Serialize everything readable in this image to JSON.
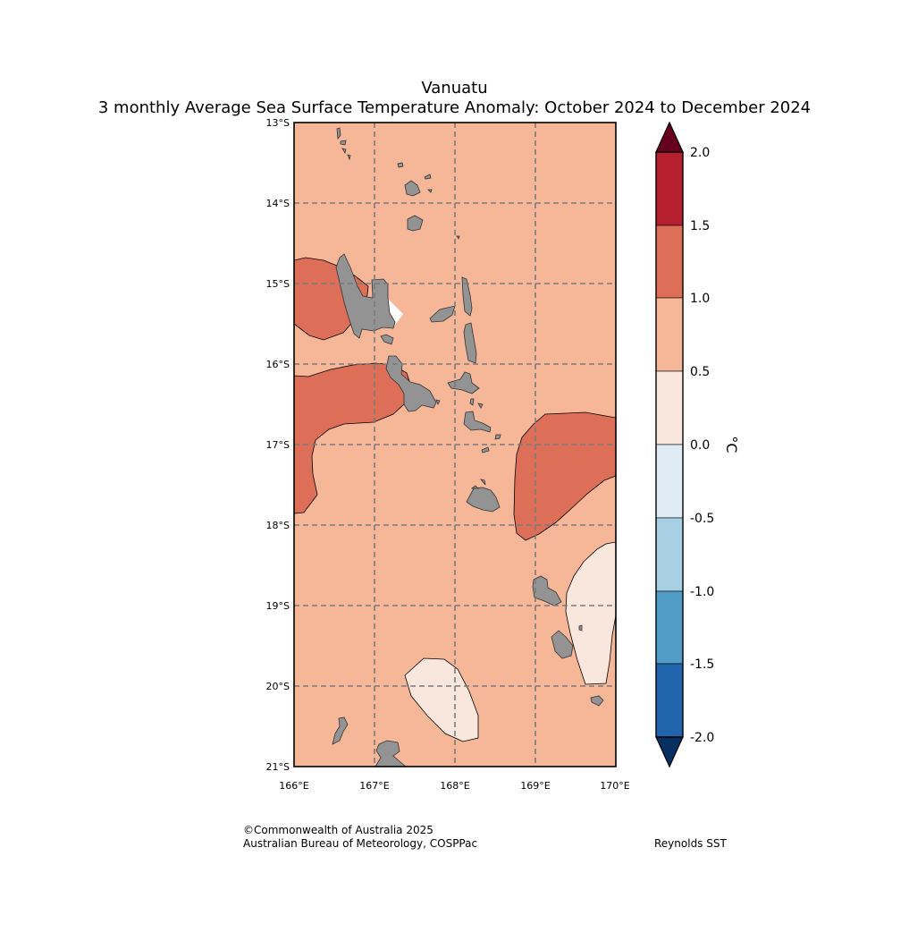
{
  "title": "Vanuatu",
  "subtitle": "3 monthly Average Sea Surface Temperature Anomaly: October 2024 to December 2024",
  "map": {
    "x_ticks": [
      "166°E",
      "167°E",
      "168°E",
      "169°E",
      "170°E"
    ],
    "y_ticks": [
      "13°S",
      "14°S",
      "15°S",
      "16°S",
      "17°S",
      "18°S",
      "19°S",
      "20°S",
      "21°S"
    ],
    "gridlines": true,
    "background_anomaly": "0.5 to 1.0",
    "zones": [
      {
        "name": "warm-zone-espiritu-santo-west",
        "range": "1.0 to 1.5"
      },
      {
        "name": "warm-zone-malekula-west",
        "range": "1.0 to 1.5"
      },
      {
        "name": "warm-zone-east",
        "range": "1.0 to 1.5"
      },
      {
        "name": "mild-zone-southeast",
        "range": "0.0 to 0.5"
      },
      {
        "name": "mild-zone-south",
        "range": "0.0 to 0.5"
      }
    ],
    "land_color": "#939393"
  },
  "colorbar": {
    "label": "°C",
    "ticks": [
      "2.0",
      "1.5",
      "1.0",
      "0.5",
      "0.0",
      "-0.5",
      "-1.0",
      "-1.5",
      "-2.0"
    ],
    "bins": [
      {
        "range": "> 2.0",
        "color": "#67001f"
      },
      {
        "range": "1.5 to 2.0",
        "color": "#b61f2e"
      },
      {
        "range": "1.0 to 1.5",
        "color": "#dd6f58"
      },
      {
        "range": "0.5 to 1.0",
        "color": "#f6b799"
      },
      {
        "range": "0.0 to 0.5",
        "color": "#f9e6dc"
      },
      {
        "range": "-0.5 to 0.0",
        "color": "#e0ecf3"
      },
      {
        "range": "-1.0 to -0.5",
        "color": "#a7d0e4"
      },
      {
        "range": "-1.5 to -1.0",
        "color": "#529dc8"
      },
      {
        "range": "-2.0 to -1.5",
        "color": "#2166ac"
      },
      {
        "range": "< -2.0",
        "color": "#053061"
      }
    ]
  },
  "footer": {
    "copyright": "©Commonwealth of Australia 2025",
    "agency": "Australian Bureau of Meteorology, COSPPac",
    "dataset": "Reynolds SST"
  }
}
